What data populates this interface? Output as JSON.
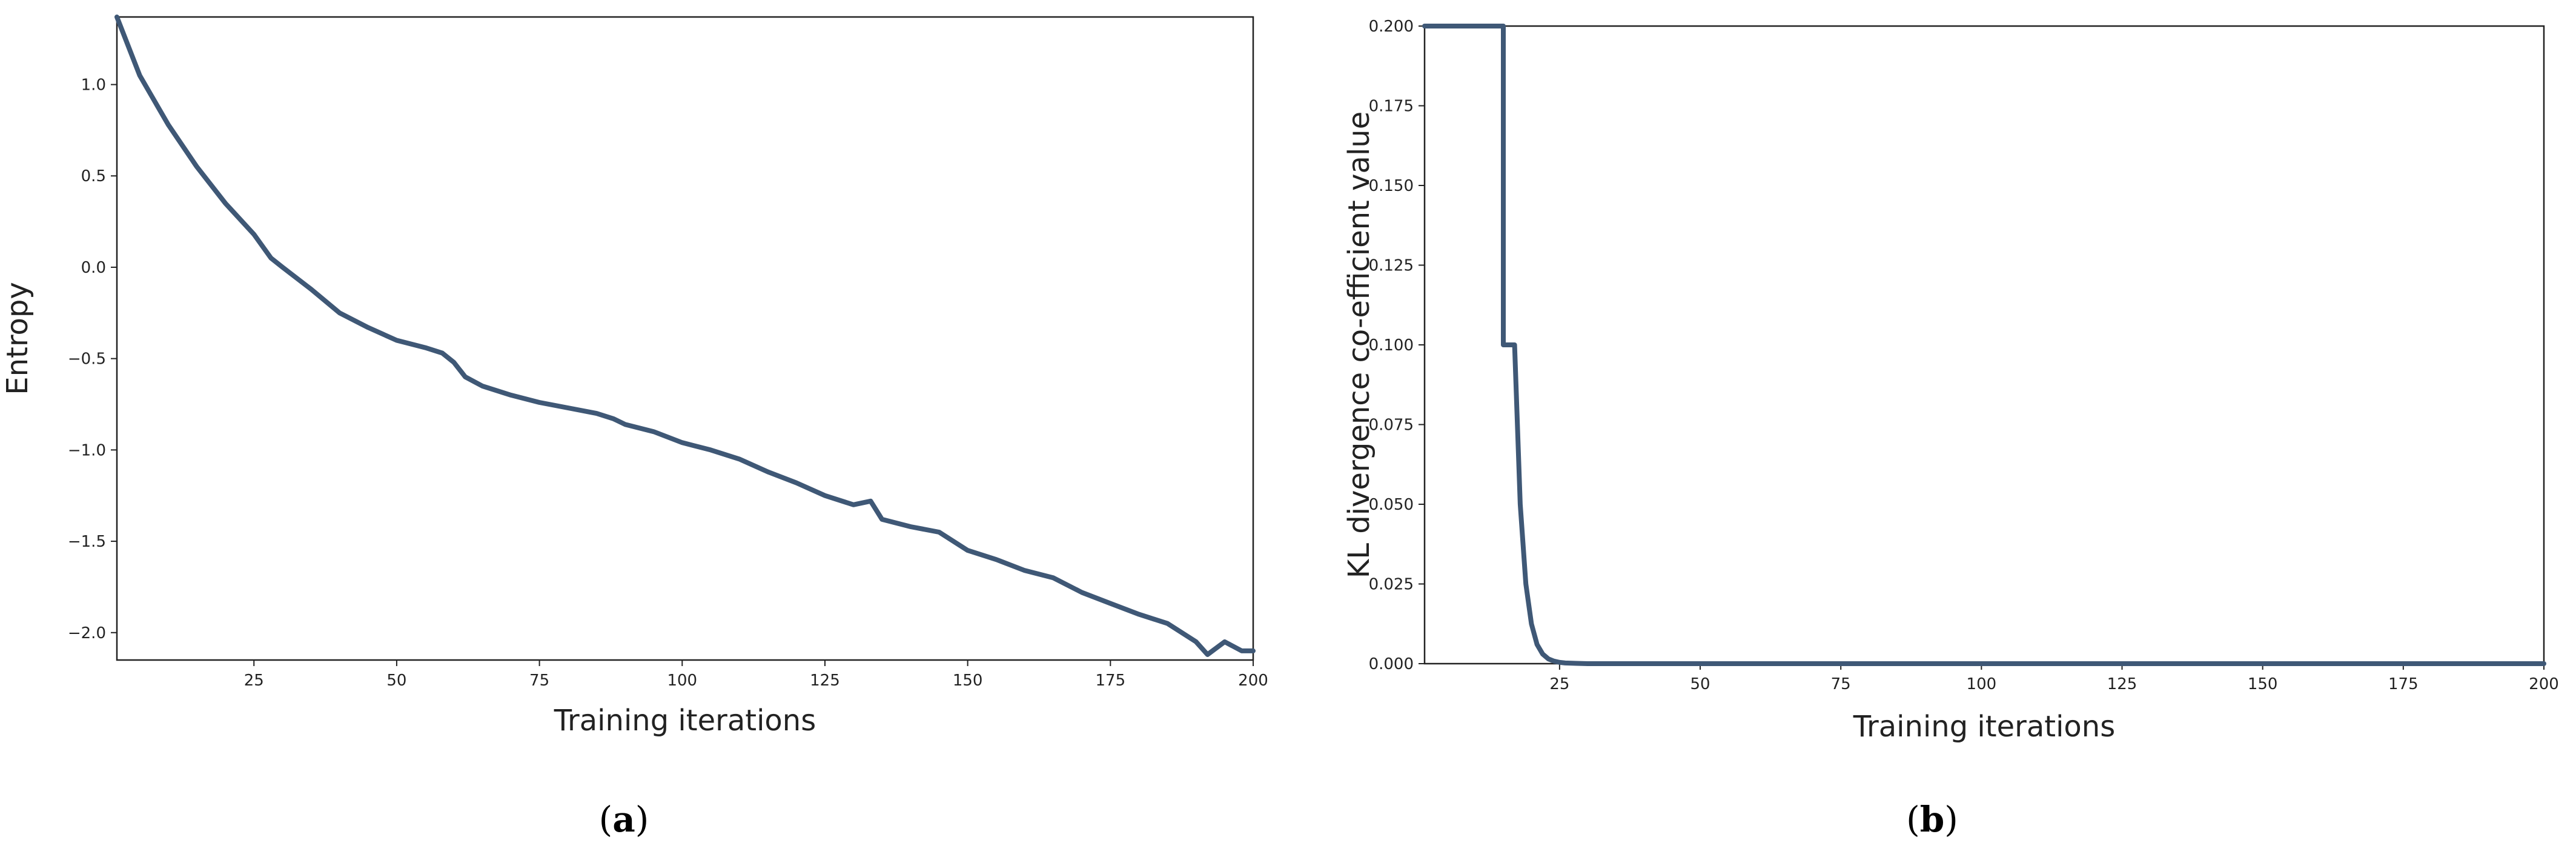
{
  "colors": {
    "line": "#3f5876",
    "axis": "#222222",
    "background": "#ffffff"
  },
  "chart_data": [
    {
      "type": "line",
      "caption": {
        "prefix": "(",
        "letter": "a",
        "suffix": ")"
      },
      "title": "",
      "xlabel": "Training iterations",
      "ylabel": "Entropy",
      "xlim": [
        1,
        200
      ],
      "ylim": [
        -2.15,
        1.37
      ],
      "xticks": [
        25,
        50,
        75,
        100,
        125,
        150,
        175,
        200
      ],
      "xtick_labels": [
        "25",
        "50",
        "75",
        "100",
        "125",
        "150",
        "175",
        "200"
      ],
      "yticks": [
        1.0,
        0.5,
        0.0,
        -0.5,
        -1.0,
        -1.5,
        -2.0
      ],
      "ytick_labels": [
        "1.0",
        "0.5",
        "0.0",
        "−0.5",
        "−1.0",
        "−1.5",
        "−2.0"
      ],
      "grid": false,
      "series": [
        {
          "x": [
            1,
            5,
            10,
            15,
            20,
            25,
            28,
            30,
            35,
            40,
            45,
            50,
            55,
            58,
            60,
            62,
            65,
            70,
            75,
            80,
            85,
            88,
            90,
            95,
            100,
            105,
            110,
            115,
            120,
            125,
            130,
            133,
            135,
            140,
            145,
            150,
            155,
            160,
            165,
            170,
            175,
            180,
            185,
            190,
            192,
            195,
            198,
            200
          ],
          "values": [
            1.37,
            1.05,
            0.78,
            0.55,
            0.35,
            0.18,
            0.05,
            0.0,
            -0.12,
            -0.25,
            -0.33,
            -0.4,
            -0.44,
            -0.47,
            -0.52,
            -0.6,
            -0.65,
            -0.7,
            -0.74,
            -0.77,
            -0.8,
            -0.83,
            -0.86,
            -0.9,
            -0.96,
            -1.0,
            -1.05,
            -1.12,
            -1.18,
            -1.25,
            -1.3,
            -1.28,
            -1.38,
            -1.42,
            -1.45,
            -1.55,
            -1.6,
            -1.66,
            -1.7,
            -1.78,
            -1.84,
            -1.9,
            -1.95,
            -2.05,
            -2.12,
            -2.05,
            -2.1,
            -2.1
          ]
        }
      ]
    },
    {
      "type": "line",
      "caption": {
        "prefix": "(",
        "letter": "b",
        "suffix": ")"
      },
      "title": "",
      "xlabel": "Training iterations",
      "ylabel": "KL divergence co-efficient value",
      "xlim": [
        1,
        200
      ],
      "ylim": [
        0,
        0.2
      ],
      "xticks": [
        25,
        50,
        75,
        100,
        125,
        150,
        175,
        200
      ],
      "xtick_labels": [
        "25",
        "50",
        "75",
        "100",
        "125",
        "150",
        "175",
        "200"
      ],
      "yticks": [
        0.2,
        0.175,
        0.15,
        0.125,
        0.1,
        0.075,
        0.05,
        0.025,
        0.0
      ],
      "ytick_labels": [
        "0.200",
        "0.175",
        "0.150",
        "0.125",
        "0.100",
        "0.075",
        "0.050",
        "0.025",
        "0.000"
      ],
      "grid": false,
      "series": [
        {
          "x": [
            1,
            15,
            15,
            17,
            17,
            18,
            19,
            20,
            21,
            22,
            23,
            24,
            25,
            26,
            28,
            30,
            40,
            200
          ],
          "values": [
            0.2,
            0.2,
            0.1,
            0.1,
            0.1,
            0.05,
            0.025,
            0.0125,
            0.006,
            0.003,
            0.0015,
            0.0008,
            0.0004,
            0.0002,
            0.0001,
            0.0,
            0.0,
            0.0
          ]
        }
      ]
    }
  ]
}
